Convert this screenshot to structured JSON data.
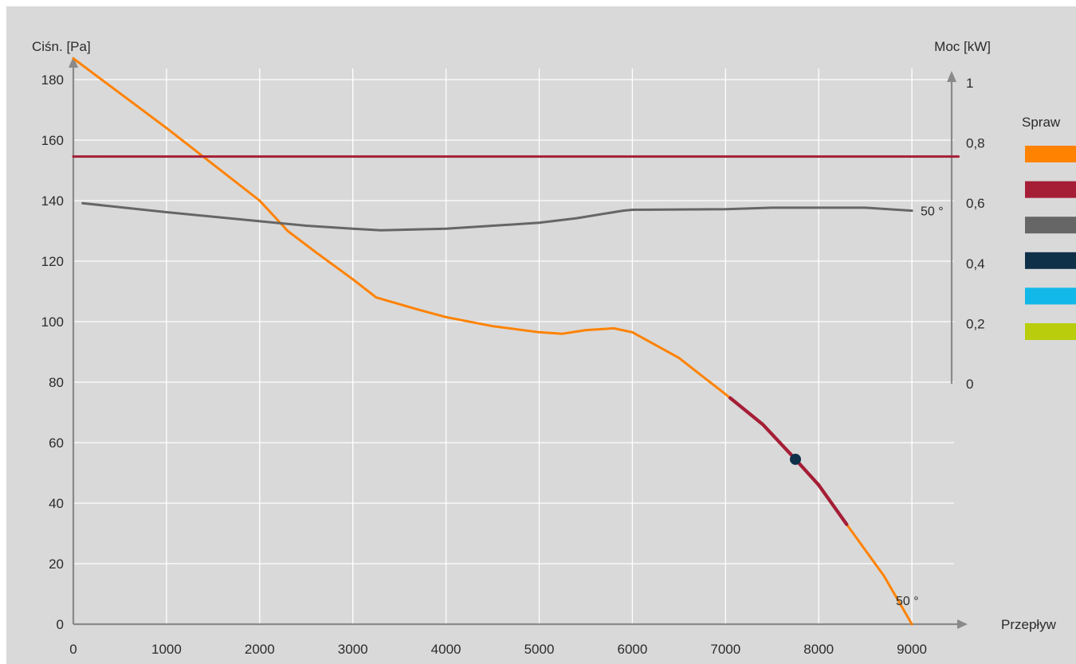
{
  "chart_data": {
    "type": "line",
    "xlabel": "Przepływ",
    "ylabel_left": "Ciśn. [Pa]",
    "ylabel_right": "Moc [kW]",
    "legend_title": "Spraw",
    "legend_placement": "right",
    "xlim": [
      0,
      9500
    ],
    "ylim_left": [
      0,
      185
    ],
    "ylim_right": [
      0,
      1
    ],
    "x_ticks": [
      "0",
      "1000",
      "2000",
      "3000",
      "4000",
      "5000",
      "6000",
      "7000",
      "8000",
      "9000"
    ],
    "y_left_ticks": [
      "0",
      "20",
      "40",
      "60",
      "80",
      "100",
      "120",
      "140",
      "160",
      "180"
    ],
    "y_right_ticks": [
      "0",
      "0,2",
      "0,4",
      "0,6",
      "0,8",
      "1"
    ],
    "grid": true,
    "background": "#d9d9d9",
    "series": [
      {
        "axis": "left",
        "color": "#ff8200",
        "label": "50 °",
        "points": [
          [
            0,
            187
          ],
          [
            1000,
            164
          ],
          [
            2000,
            140
          ],
          [
            2300,
            130
          ],
          [
            2600,
            123
          ],
          [
            3000,
            114
          ],
          [
            3250,
            108
          ],
          [
            3700,
            104
          ],
          [
            4000,
            101.5
          ],
          [
            4500,
            98.5
          ],
          [
            5000,
            96.5
          ],
          [
            5250,
            96
          ],
          [
            5500,
            97.2
          ],
          [
            5800,
            97.8
          ],
          [
            6000,
            96.5
          ],
          [
            6500,
            88
          ],
          [
            7000,
            76
          ],
          [
            7400,
            66
          ],
          [
            7750,
            54.5
          ],
          [
            8000,
            46
          ],
          [
            8300,
            33
          ],
          [
            8700,
            16
          ],
          [
            9000,
            0
          ]
        ]
      },
      {
        "axis": "left",
        "color": "#a51e36",
        "points": [
          [
            7050,
            74.8
          ],
          [
            7400,
            66
          ],
          [
            7750,
            54.5
          ],
          [
            8000,
            46
          ],
          [
            8300,
            33
          ]
        ]
      },
      {
        "axis": "right",
        "color": "#666666",
        "label": "50 °",
        "points": [
          [
            100,
            0.6
          ],
          [
            1000,
            0.57
          ],
          [
            2000,
            0.54
          ],
          [
            2500,
            0.525
          ],
          [
            3000,
            0.515
          ],
          [
            3300,
            0.51
          ],
          [
            4000,
            0.515
          ],
          [
            5000,
            0.535
          ],
          [
            5400,
            0.55
          ],
          [
            5900,
            0.575
          ],
          [
            6000,
            0.578
          ],
          [
            7000,
            0.58
          ],
          [
            7500,
            0.585
          ],
          [
            8500,
            0.585
          ],
          [
            9000,
            0.575
          ]
        ]
      },
      {
        "axis": "right",
        "color": "#a51e36",
        "points": [
          [
            0,
            0.755
          ],
          [
            9500,
            0.755
          ]
        ]
      }
    ],
    "operating_point": {
      "color": "#0f3049",
      "x": 7750,
      "y": 54.5
    },
    "legend": {
      "colors": [
        "#ff8200",
        "#a51e36",
        "#666666",
        "#0f3049",
        "#12b8e8",
        "#b9cd0c"
      ]
    }
  }
}
